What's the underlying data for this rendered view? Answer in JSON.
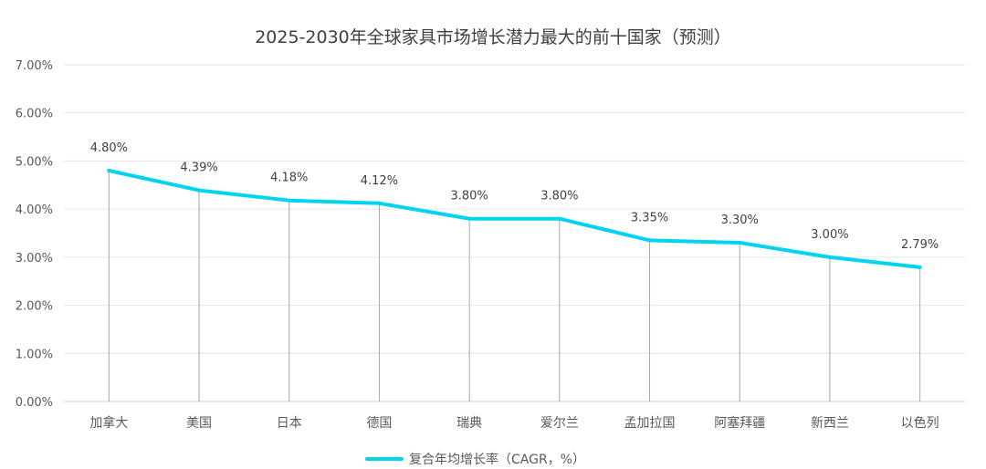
{
  "chart_data": {
    "type": "line",
    "title": "2025-2030年全球家具市场增长潜力最大的前十国家（预测）",
    "categories": [
      "加拿大",
      "美国",
      "日本",
      "德国",
      "瑞典",
      "爱尔兰",
      "孟加拉国",
      "阿塞拜疆",
      "新西兰",
      "以色列"
    ],
    "series": [
      {
        "name": "复合年均增长率（CAGR，%）",
        "values": [
          4.8,
          4.39,
          4.18,
          4.12,
          3.8,
          3.8,
          3.35,
          3.3,
          3.0,
          2.79
        ],
        "labels": [
          "4.80%",
          "4.39%",
          "4.18%",
          "4.12%",
          "3.80%",
          "3.80%",
          "3.35%",
          "3.30%",
          "3.00%",
          "2.79%"
        ]
      }
    ],
    "ylim": [
      0,
      7
    ],
    "yticks": [
      0,
      1,
      2,
      3,
      4,
      5,
      6,
      7
    ],
    "ytick_labels": [
      "0.00%",
      "1.00%",
      "2.00%",
      "3.00%",
      "4.00%",
      "5.00%",
      "6.00%",
      "7.00%"
    ],
    "grid": true,
    "drop_lines": true,
    "legend_position": "bottom",
    "colors": {
      "line": "#00d4f0",
      "drop_line": "#9aabb8",
      "grid": "#e6e6e6",
      "axis": "#d0d0d0"
    }
  }
}
